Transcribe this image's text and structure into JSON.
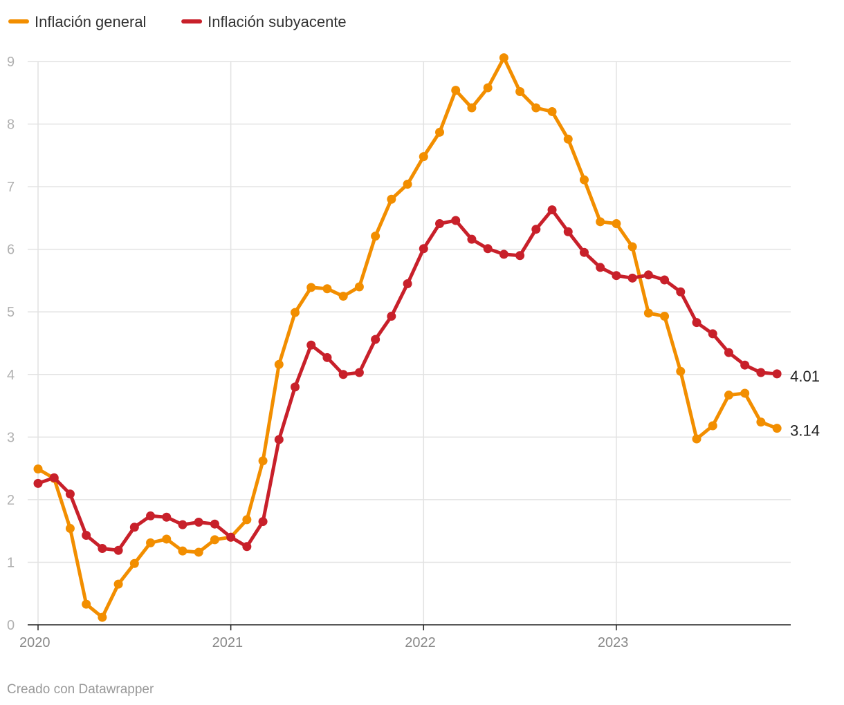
{
  "chart_data": {
    "type": "line",
    "xlabel": "",
    "ylabel": "",
    "ylim": [
      0,
      9
    ],
    "yticks": [
      "0",
      "1",
      "2",
      "3",
      "4",
      "5",
      "6",
      "7",
      "8",
      "9"
    ],
    "xticks": [
      "2020",
      "2021",
      "2022",
      "2023"
    ],
    "x_start": "2020-01",
    "grid": "horizontal and vertical at year ticks",
    "legend_position": "top-left",
    "series": [
      {
        "name": "Inflación general",
        "color": "#f28e00",
        "values": [
          2.49,
          2.34,
          1.54,
          0.33,
          0.12,
          0.65,
          0.98,
          1.31,
          1.37,
          1.18,
          1.16,
          1.36,
          1.4,
          1.68,
          2.62,
          4.16,
          4.99,
          5.39,
          5.37,
          5.25,
          5.4,
          6.21,
          6.8,
          7.04,
          7.48,
          7.87,
          8.54,
          8.26,
          8.58,
          9.06,
          8.52,
          8.26,
          8.2,
          7.76,
          7.11,
          6.44,
          6.41,
          6.04,
          4.98,
          4.93,
          4.05,
          2.97,
          3.18,
          3.67,
          3.7,
          3.24,
          3.14
        ],
        "end_label": "3.14"
      },
      {
        "name": "Inflación subyacente",
        "color": "#c8202a",
        "values": [
          2.26,
          2.35,
          2.09,
          1.43,
          1.22,
          1.19,
          1.56,
          1.74,
          1.72,
          1.6,
          1.64,
          1.61,
          1.4,
          1.25,
          1.65,
          2.96,
          3.8,
          4.47,
          4.27,
          4.0,
          4.03,
          4.56,
          4.93,
          5.45,
          6.01,
          6.41,
          6.46,
          6.16,
          6.01,
          5.92,
          5.9,
          6.32,
          6.63,
          6.28,
          5.95,
          5.71,
          5.58,
          5.54,
          5.59,
          5.51,
          5.32,
          4.83,
          4.65,
          4.35,
          4.15,
          4.03,
          4.01
        ],
        "end_label": "4.01"
      }
    ]
  },
  "footer": {
    "credit": "Creado con Datawrapper"
  }
}
